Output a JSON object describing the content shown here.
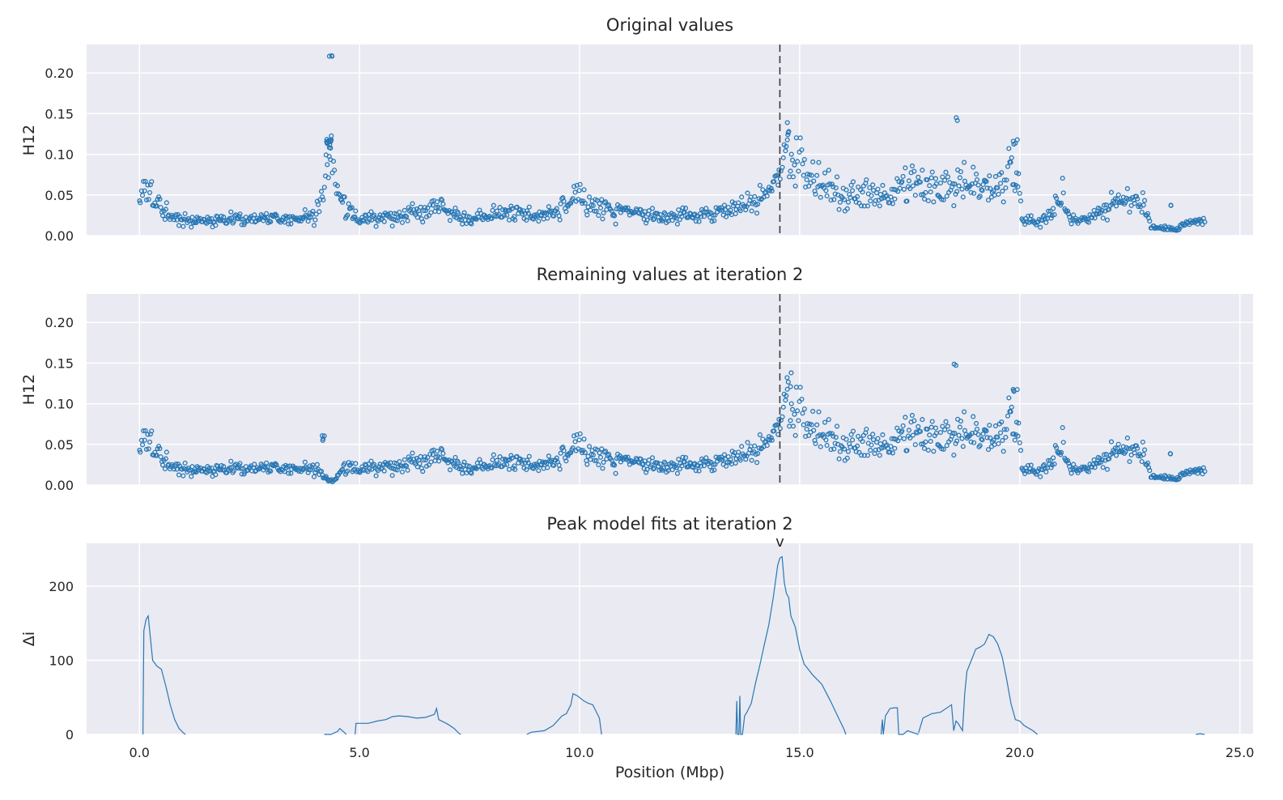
{
  "chart_data": {
    "type": "scatter",
    "xlabel": "Position (Mbp)",
    "xlim": [
      -1.2,
      25.3
    ],
    "xticks": [
      0,
      5,
      10,
      15,
      20,
      25
    ],
    "xtick_labels": [
      "0.0",
      "5.0",
      "10.0",
      "15.0",
      "20.0",
      "25.0"
    ],
    "peak_position": 14.55,
    "peak_marker": "v",
    "colors": {
      "series": "#2878b5",
      "panel_bg": "#eaeaf2",
      "grid": "#ffffff",
      "vline": "#3a3a3a"
    },
    "panels": [
      {
        "title": "Original values",
        "ylabel": "H12",
        "ylim": [
          0,
          0.235
        ],
        "yticks": [
          0,
          0.05,
          0.1,
          0.15,
          0.2
        ],
        "ytick_labels": [
          "0.00",
          "0.05",
          "0.10",
          "0.15",
          "0.20"
        ],
        "profile": [
          [
            0,
            0.035
          ],
          [
            0.15,
            0.06
          ],
          [
            0.3,
            0.045
          ],
          [
            0.5,
            0.04
          ],
          [
            0.7,
            0.025
          ],
          [
            1.0,
            0.018
          ],
          [
            1.5,
            0.018
          ],
          [
            2.0,
            0.02
          ],
          [
            2.5,
            0.02
          ],
          [
            3.0,
            0.022
          ],
          [
            3.5,
            0.02
          ],
          [
            4.0,
            0.025
          ],
          [
            4.15,
            0.045
          ],
          [
            4.3,
            0.11
          ],
          [
            4.5,
            0.06
          ],
          [
            4.7,
            0.03
          ],
          [
            5.0,
            0.02
          ],
          [
            5.5,
            0.022
          ],
          [
            6.0,
            0.025
          ],
          [
            6.5,
            0.035
          ],
          [
            6.8,
            0.04
          ],
          [
            7.0,
            0.03
          ],
          [
            7.5,
            0.022
          ],
          [
            8.0,
            0.025
          ],
          [
            8.5,
            0.03
          ],
          [
            9.0,
            0.025
          ],
          [
            9.5,
            0.03
          ],
          [
            10.0,
            0.045
          ],
          [
            10.5,
            0.035
          ],
          [
            11.0,
            0.03
          ],
          [
            11.5,
            0.025
          ],
          [
            12.0,
            0.022
          ],
          [
            12.5,
            0.025
          ],
          [
            13.0,
            0.028
          ],
          [
            13.5,
            0.035
          ],
          [
            14.0,
            0.045
          ],
          [
            14.3,
            0.06
          ],
          [
            14.55,
            0.08
          ],
          [
            14.7,
            0.1
          ],
          [
            15.0,
            0.09
          ],
          [
            15.3,
            0.07
          ],
          [
            15.6,
            0.06
          ],
          [
            16.0,
            0.045
          ],
          [
            16.5,
            0.05
          ],
          [
            17.0,
            0.045
          ],
          [
            17.5,
            0.06
          ],
          [
            18.0,
            0.055
          ],
          [
            18.5,
            0.06
          ],
          [
            19.0,
            0.065
          ],
          [
            19.5,
            0.055
          ],
          [
            19.8,
            0.09
          ],
          [
            20.0,
            0.05
          ],
          [
            20.1,
            0.02
          ],
          [
            20.5,
            0.018
          ],
          [
            21.0,
            0.05
          ],
          [
            21.1,
            0.02
          ],
          [
            21.5,
            0.022
          ],
          [
            22.0,
            0.035
          ],
          [
            22.5,
            0.045
          ],
          [
            22.8,
            0.04
          ],
          [
            23.0,
            0.01
          ],
          [
            23.5,
            0.008
          ],
          [
            23.8,
            0.015
          ],
          [
            24.2,
            0.018
          ]
        ],
        "clusters": [
          [
            4.3,
            0.113,
            0.006,
            12
          ],
          [
            4.35,
            0.22,
            0.004,
            3
          ],
          [
            18.55,
            0.145,
            0.004,
            2
          ],
          [
            14.75,
            0.13,
            0.01,
            3
          ],
          [
            19.9,
            0.115,
            0.006,
            4
          ],
          [
            23.4,
            0.038,
            0.002,
            2
          ]
        ],
        "n_points": 1050
      },
      {
        "title": "Remaining values at iteration 2",
        "ylabel": "H12",
        "ylim": [
          0,
          0.235
        ],
        "yticks": [
          0,
          0.05,
          0.1,
          0.15,
          0.2
        ],
        "ytick_labels": [
          "0.00",
          "0.05",
          "0.10",
          "0.15",
          "0.20"
        ],
        "profile": [
          [
            0,
            0.035
          ],
          [
            0.15,
            0.06
          ],
          [
            0.3,
            0.045
          ],
          [
            0.5,
            0.04
          ],
          [
            0.7,
            0.025
          ],
          [
            1.0,
            0.018
          ],
          [
            1.5,
            0.018
          ],
          [
            2.0,
            0.02
          ],
          [
            2.5,
            0.02
          ],
          [
            3.0,
            0.022
          ],
          [
            3.5,
            0.02
          ],
          [
            4.0,
            0.02
          ],
          [
            4.2,
            0.01
          ],
          [
            4.4,
            0.004
          ],
          [
            4.6,
            0.02
          ],
          [
            5.0,
            0.02
          ],
          [
            5.5,
            0.022
          ],
          [
            6.0,
            0.025
          ],
          [
            6.5,
            0.035
          ],
          [
            6.8,
            0.04
          ],
          [
            7.0,
            0.03
          ],
          [
            7.5,
            0.022
          ],
          [
            8.0,
            0.025
          ],
          [
            8.5,
            0.03
          ],
          [
            9.0,
            0.025
          ],
          [
            9.5,
            0.03
          ],
          [
            10.0,
            0.045
          ],
          [
            10.5,
            0.035
          ],
          [
            11.0,
            0.03
          ],
          [
            11.5,
            0.025
          ],
          [
            12.0,
            0.022
          ],
          [
            12.5,
            0.025
          ],
          [
            13.0,
            0.028
          ],
          [
            13.5,
            0.035
          ],
          [
            14.0,
            0.045
          ],
          [
            14.3,
            0.06
          ],
          [
            14.55,
            0.08
          ],
          [
            14.7,
            0.1
          ],
          [
            15.0,
            0.09
          ],
          [
            15.3,
            0.07
          ],
          [
            15.6,
            0.06
          ],
          [
            16.0,
            0.045
          ],
          [
            16.5,
            0.05
          ],
          [
            17.0,
            0.045
          ],
          [
            17.5,
            0.06
          ],
          [
            18.0,
            0.055
          ],
          [
            18.5,
            0.06
          ],
          [
            19.0,
            0.065
          ],
          [
            19.5,
            0.055
          ],
          [
            19.8,
            0.09
          ],
          [
            20.0,
            0.05
          ],
          [
            20.1,
            0.02
          ],
          [
            20.5,
            0.018
          ],
          [
            21.0,
            0.05
          ],
          [
            21.1,
            0.02
          ],
          [
            21.5,
            0.022
          ],
          [
            22.0,
            0.035
          ],
          [
            22.5,
            0.045
          ],
          [
            22.8,
            0.04
          ],
          [
            23.0,
            0.01
          ],
          [
            23.5,
            0.008
          ],
          [
            23.8,
            0.015
          ],
          [
            24.2,
            0.018
          ]
        ],
        "clusters": [
          [
            4.15,
            0.058,
            0.004,
            4
          ],
          [
            18.55,
            0.145,
            0.004,
            2
          ],
          [
            14.75,
            0.13,
            0.01,
            3
          ],
          [
            19.9,
            0.115,
            0.006,
            4
          ],
          [
            23.4,
            0.038,
            0.002,
            2
          ]
        ],
        "n_points": 1050
      }
    ],
    "fit_panel": {
      "type": "line",
      "title": "Peak model fits at iteration 2",
      "ylabel": "Δi",
      "ylim": [
        0,
        258
      ],
      "yticks": [
        0,
        100,
        200
      ],
      "ytick_labels": [
        "0",
        "100",
        "200"
      ],
      "segments": [
        [
          [
            0.08,
            0
          ],
          [
            0.1,
            140
          ],
          [
            0.15,
            155
          ],
          [
            0.2,
            160
          ],
          [
            0.3,
            100
          ],
          [
            0.4,
            92
          ],
          [
            0.5,
            88
          ],
          [
            0.6,
            65
          ],
          [
            0.7,
            40
          ],
          [
            0.8,
            20
          ],
          [
            0.9,
            8
          ],
          [
            1.0,
            2
          ],
          [
            1.05,
            0
          ]
        ],
        [
          [
            4.2,
            0
          ],
          [
            4.35,
            0
          ],
          [
            4.5,
            4
          ],
          [
            4.55,
            8
          ],
          [
            4.65,
            3
          ],
          [
            4.7,
            0
          ]
        ],
        [
          [
            4.9,
            0
          ],
          [
            4.92,
            15
          ],
          [
            5.2,
            15
          ],
          [
            5.4,
            18
          ],
          [
            5.6,
            20
          ],
          [
            5.75,
            24
          ],
          [
            5.9,
            25
          ],
          [
            6.1,
            24
          ],
          [
            6.3,
            22
          ],
          [
            6.5,
            23
          ],
          [
            6.7,
            27
          ],
          [
            6.75,
            35
          ],
          [
            6.8,
            20
          ],
          [
            7.0,
            14
          ],
          [
            7.15,
            8
          ],
          [
            7.25,
            2
          ],
          [
            7.3,
            0
          ]
        ],
        [
          [
            8.8,
            0
          ],
          [
            8.9,
            3
          ],
          [
            9.2,
            5
          ],
          [
            9.4,
            12
          ],
          [
            9.6,
            25
          ],
          [
            9.7,
            28
          ],
          [
            9.8,
            40
          ],
          [
            9.85,
            55
          ],
          [
            9.95,
            52
          ],
          [
            10.1,
            45
          ],
          [
            10.2,
            42
          ],
          [
            10.3,
            40
          ],
          [
            10.45,
            22
          ],
          [
            10.5,
            0
          ]
        ],
        [
          [
            13.55,
            0
          ],
          [
            13.57,
            45
          ],
          [
            13.59,
            0
          ],
          [
            13.62,
            0
          ],
          [
            13.64,
            52
          ],
          [
            13.66,
            0
          ],
          [
            13.7,
            0
          ],
          [
            13.75,
            25
          ],
          [
            13.8,
            30
          ],
          [
            13.9,
            42
          ],
          [
            14.0,
            70
          ],
          [
            14.1,
            95
          ],
          [
            14.2,
            122
          ],
          [
            14.3,
            148
          ],
          [
            14.4,
            185
          ],
          [
            14.5,
            228
          ],
          [
            14.55,
            238
          ],
          [
            14.6,
            240
          ],
          [
            14.65,
            205
          ],
          [
            14.7,
            190
          ],
          [
            14.75,
            185
          ],
          [
            14.8,
            160
          ],
          [
            14.9,
            145
          ],
          [
            15.0,
            115
          ],
          [
            15.1,
            95
          ],
          [
            15.3,
            80
          ],
          [
            15.5,
            68
          ],
          [
            15.7,
            45
          ],
          [
            15.9,
            20
          ],
          [
            16.0,
            8
          ],
          [
            16.05,
            0
          ]
        ],
        [
          [
            16.85,
            0
          ],
          [
            16.88,
            20
          ],
          [
            16.9,
            0
          ],
          [
            16.95,
            25
          ],
          [
            17.0,
            30
          ],
          [
            17.05,
            35
          ],
          [
            17.15,
            36
          ],
          [
            17.22,
            36
          ],
          [
            17.25,
            0
          ],
          [
            17.35,
            0
          ],
          [
            17.45,
            5
          ],
          [
            17.6,
            2
          ],
          [
            17.7,
            0
          ]
        ],
        [
          [
            17.7,
            2
          ],
          [
            17.8,
            22
          ],
          [
            18.0,
            28
          ],
          [
            18.2,
            30
          ],
          [
            18.45,
            40
          ],
          [
            18.5,
            5
          ],
          [
            18.55,
            18
          ],
          [
            18.6,
            15
          ],
          [
            18.7,
            5
          ],
          [
            18.75,
            55
          ],
          [
            18.8,
            85
          ],
          [
            18.9,
            100
          ],
          [
            19.0,
            115
          ],
          [
            19.1,
            118
          ],
          [
            19.2,
            122
          ],
          [
            19.3,
            135
          ],
          [
            19.4,
            132
          ],
          [
            19.5,
            122
          ],
          [
            19.6,
            105
          ],
          [
            19.7,
            75
          ],
          [
            19.8,
            42
          ],
          [
            19.9,
            20
          ],
          [
            20.0,
            18
          ],
          [
            20.1,
            12
          ],
          [
            20.3,
            5
          ],
          [
            20.4,
            0
          ]
        ],
        [
          [
            24.0,
            0
          ],
          [
            24.1,
            1
          ],
          [
            24.2,
            0
          ]
        ]
      ]
    }
  }
}
